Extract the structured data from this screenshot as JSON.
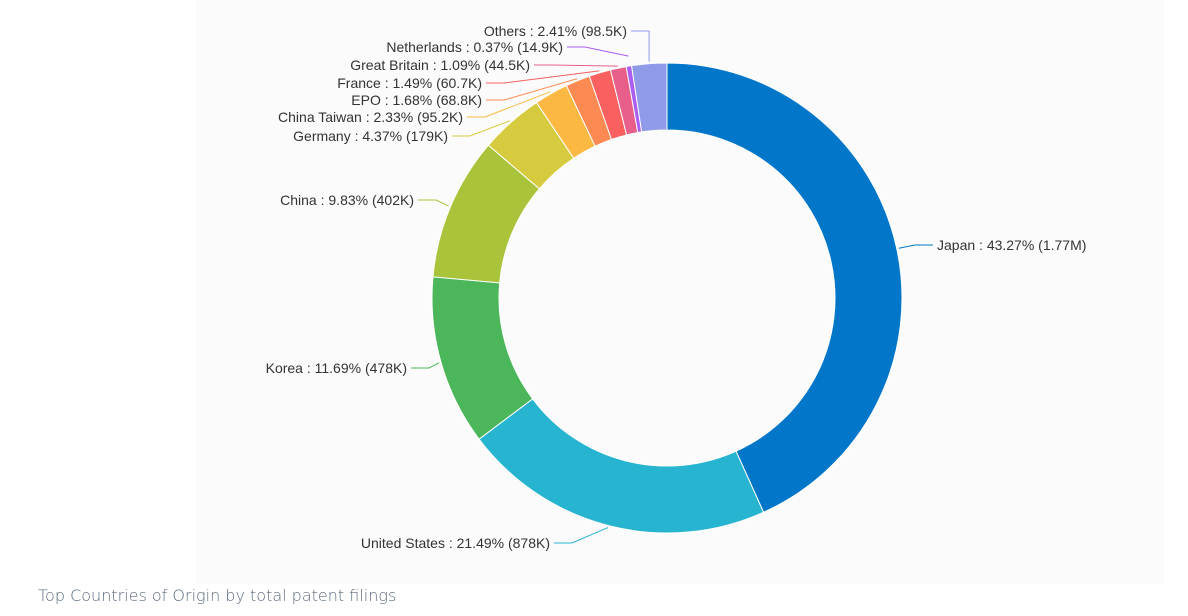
{
  "caption": "Top Countries of Origin by total patent filings",
  "chart_data": {
    "type": "pie",
    "donut": true,
    "title": "",
    "slices": [
      {
        "label": "Japan",
        "percent": 43.27,
        "value_label": "1.77M",
        "value": 1770000,
        "color": "#0277c9",
        "display": "Japan : 43.27% (1.77M)"
      },
      {
        "label": "United States",
        "percent": 21.49,
        "value_label": "878K",
        "value": 878000,
        "color": "#27b4d0",
        "display": "United States : 21.49% (878K)"
      },
      {
        "label": "Korea",
        "percent": 11.69,
        "value_label": "478K",
        "value": 478000,
        "color": "#4cb65a",
        "display": "Korea : 11.69% (478K)"
      },
      {
        "label": "China",
        "percent": 9.83,
        "value_label": "402K",
        "value": 402000,
        "color": "#a9c43b",
        "display": "China : 9.83% (402K)"
      },
      {
        "label": "Germany",
        "percent": 4.37,
        "value_label": "179K",
        "value": 179000,
        "color": "#d6cb3e",
        "display": "Germany : 4.37% (179K)"
      },
      {
        "label": "China Taiwan",
        "percent": 2.33,
        "value_label": "95.2K",
        "value": 95200,
        "color": "#fbb944",
        "display": "China Taiwan : 2.33% (95.2K)"
      },
      {
        "label": "EPO",
        "percent": 1.68,
        "value_label": "68.8K",
        "value": 68800,
        "color": "#fd8a52",
        "display": "EPO : 1.68% (68.8K)"
      },
      {
        "label": "France",
        "percent": 1.49,
        "value_label": "60.7K",
        "value": 60700,
        "color": "#f9605f",
        "display": "France : 1.49% (60.7K)"
      },
      {
        "label": "Great Britain",
        "percent": 1.09,
        "value_label": "44.5K",
        "value": 44500,
        "color": "#e8608a",
        "display": "Great Britain : 1.09% (44.5K)"
      },
      {
        "label": "Netherlands",
        "percent": 0.37,
        "value_label": "14.9K",
        "value": 14900,
        "color": "#ab5ef2",
        "display": "Netherlands : 0.37% (14.9K)"
      },
      {
        "label": "Others",
        "percent": 2.41,
        "value_label": "98.5K",
        "value": 98500,
        "color": "#8f9be8",
        "display": "Others : 2.41% (98.5K)"
      }
    ]
  }
}
